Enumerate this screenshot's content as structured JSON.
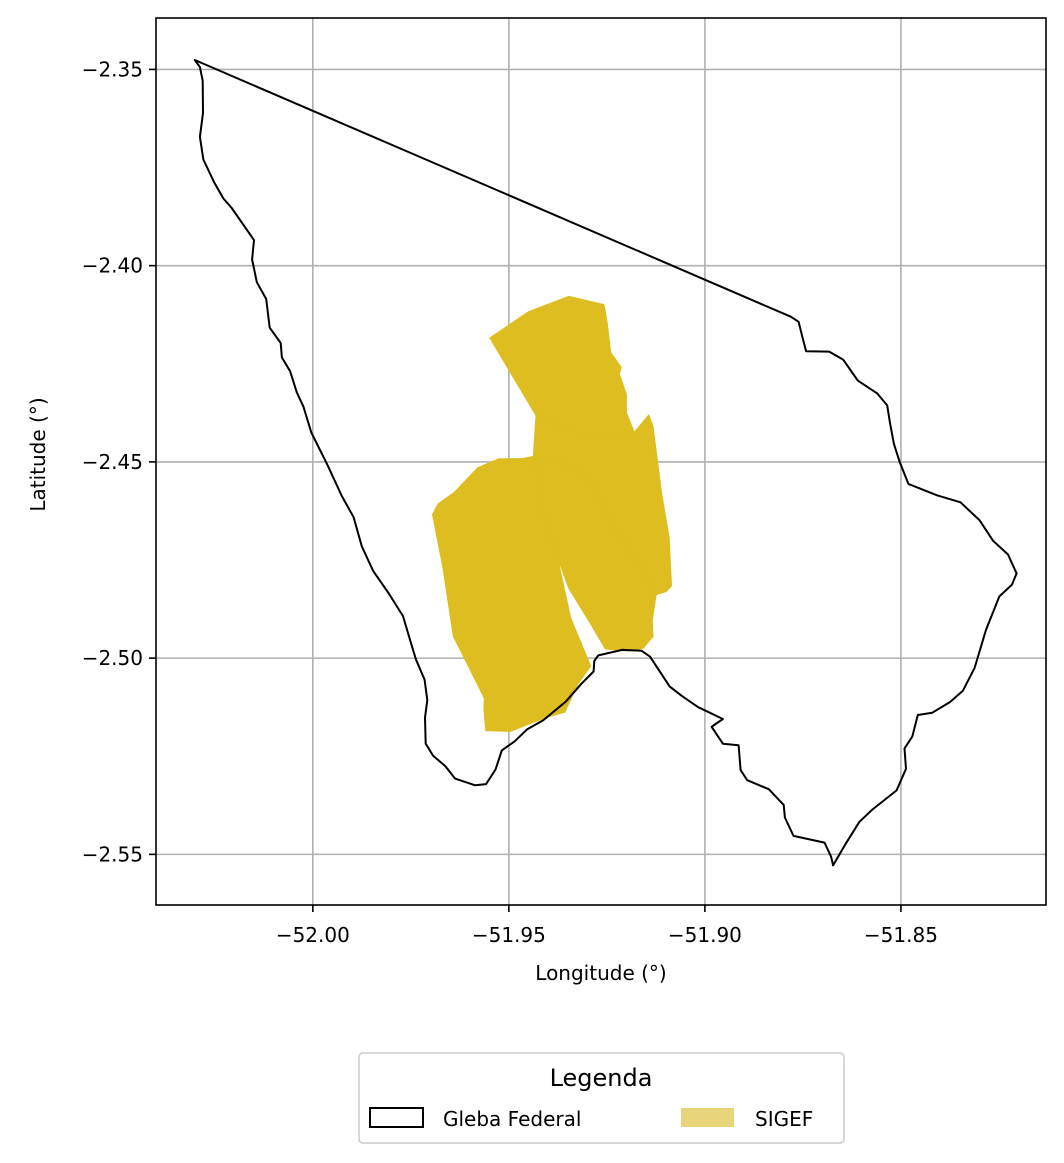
{
  "chart_data": {
    "type": "map",
    "xlabel": "Longitude (°)",
    "ylabel": "Latitude (°)",
    "xlim": [
      -52.04,
      -51.813
    ],
    "ylim": [
      -2.5629,
      -2.3369
    ],
    "x_ticks": [
      -52.0,
      -51.95,
      -51.9,
      -51.85
    ],
    "y_ticks": [
      -2.35,
      -2.4,
      -2.45,
      -2.5,
      -2.55
    ],
    "x_tick_labels": [
      "−52.00",
      "−51.95",
      "−51.90",
      "−51.85"
    ],
    "y_tick_labels": [
      "−2.35",
      "−2.40",
      "−2.45",
      "−2.50",
      "−2.55"
    ],
    "grid": true,
    "legend": {
      "title": "Legenda",
      "placement": "bottom-center, below plot",
      "entries": [
        {
          "label": "Gleba Federal",
          "style": "outline"
        },
        {
          "label": "SIGEF",
          "style": "fill"
        }
      ]
    },
    "colors": {
      "sigef_fill": "#DDBD1F",
      "sigef_legend": "#E8D47A",
      "gleba_edge": "#000000",
      "grid": "#b0b0b0"
    },
    "layers": [
      {
        "name": "Gleba Federal",
        "kind": "outline",
        "polygons": [
          [
            [
              -52.0301,
              -2.3476
            ],
            [
              -52.0288,
              -2.3494
            ],
            [
              -52.0281,
              -2.3529
            ],
            [
              -52.028,
              -2.3611
            ],
            [
              -52.0288,
              -2.3672
            ],
            [
              -52.0279,
              -2.373
            ],
            [
              -52.0251,
              -2.3789
            ],
            [
              -52.0228,
              -2.3829
            ],
            [
              -52.0207,
              -2.3853
            ],
            [
              -52.015,
              -2.3935
            ],
            [
              -52.0155,
              -2.3984
            ],
            [
              -52.0143,
              -2.4042
            ],
            [
              -52.0119,
              -2.4085
            ],
            [
              -52.011,
              -2.4158
            ],
            [
              -52.0082,
              -2.4197
            ],
            [
              -52.0079,
              -2.4234
            ],
            [
              -52.0058,
              -2.4269
            ],
            [
              -52.0041,
              -2.4323
            ],
            [
              -52.0024,
              -2.4359
            ],
            [
              -52.0004,
              -2.4425
            ],
            [
              -51.9962,
              -2.4509
            ],
            [
              -51.9926,
              -2.4587
            ],
            [
              -51.9896,
              -2.4641
            ],
            [
              -51.9875,
              -2.4715
            ],
            [
              -51.9846,
              -2.4778
            ],
            [
              -51.9807,
              -2.4834
            ],
            [
              -51.977,
              -2.4893
            ],
            [
              -51.9752,
              -2.4954
            ],
            [
              -51.9737,
              -2.5003
            ],
            [
              -51.9715,
              -2.5055
            ],
            [
              -51.9708,
              -2.5107
            ],
            [
              -51.9714,
              -2.5152
            ],
            [
              -51.9712,
              -2.5218
            ],
            [
              -51.9693,
              -2.5249
            ],
            [
              -51.9662,
              -2.5275
            ],
            [
              -51.9637,
              -2.5307
            ],
            [
              -51.9586,
              -2.5324
            ],
            [
              -51.9558,
              -2.5321
            ],
            [
              -51.9534,
              -2.5284
            ],
            [
              -51.9518,
              -2.5235
            ],
            [
              -51.9485,
              -2.5212
            ],
            [
              -51.9453,
              -2.5181
            ],
            [
              -51.9412,
              -2.5158
            ],
            [
              -51.9355,
              -2.5111
            ],
            [
              -51.9314,
              -2.5064
            ],
            [
              -51.9284,
              -2.5034
            ],
            [
              -51.9282,
              -2.5007
            ],
            [
              -51.9272,
              -2.4993
            ],
            [
              -51.9211,
              -2.4979
            ],
            [
              -51.9162,
              -2.4981
            ],
            [
              -51.914,
              -2.4996
            ],
            [
              -51.909,
              -2.5072
            ],
            [
              -51.9058,
              -2.5097
            ],
            [
              -51.9017,
              -2.5125
            ],
            [
              -51.8954,
              -2.5155
            ],
            [
              -51.8983,
              -2.5175
            ],
            [
              -51.8954,
              -2.5218
            ],
            [
              -51.8914,
              -2.5222
            ],
            [
              -51.8909,
              -2.5285
            ],
            [
              -51.8892,
              -2.5311
            ],
            [
              -51.8837,
              -2.5334
            ],
            [
              -51.8799,
              -2.5374
            ],
            [
              -51.8796,
              -2.5406
            ],
            [
              -51.8774,
              -2.5453
            ],
            [
              -51.8695,
              -2.547
            ],
            [
              -51.8678,
              -2.5506
            ],
            [
              -51.8673,
              -2.5528
            ],
            [
              -51.8644,
              -2.5478
            ],
            [
              -51.8606,
              -2.5417
            ],
            [
              -51.8573,
              -2.5386
            ],
            [
              -51.8511,
              -2.5337
            ],
            [
              -51.8487,
              -2.5282
            ],
            [
              -51.8491,
              -2.523
            ],
            [
              -51.8471,
              -2.52
            ],
            [
              -51.8457,
              -2.5145
            ],
            [
              -51.842,
              -2.5139
            ],
            [
              -51.8375,
              -2.5112
            ],
            [
              -51.8342,
              -2.5083
            ],
            [
              -51.8312,
              -2.5025
            ],
            [
              -51.8283,
              -2.4928
            ],
            [
              -51.8249,
              -2.4843
            ],
            [
              -51.8217,
              -2.4813
            ],
            [
              -51.8205,
              -2.4784
            ],
            [
              -51.8227,
              -2.4736
            ],
            [
              -51.8265,
              -2.4701
            ],
            [
              -51.8299,
              -2.4649
            ],
            [
              -51.8348,
              -2.4603
            ],
            [
              -51.8408,
              -2.4585
            ],
            [
              -51.8481,
              -2.4556
            ],
            [
              -51.8503,
              -2.4501
            ],
            [
              -51.8518,
              -2.4454
            ],
            [
              -51.8528,
              -2.4401
            ],
            [
              -51.8535,
              -2.4356
            ],
            [
              -51.856,
              -2.4326
            ],
            [
              -51.861,
              -2.4293
            ],
            [
              -51.8647,
              -2.424
            ],
            [
              -51.8683,
              -2.4219
            ],
            [
              -51.8742,
              -2.4218
            ],
            [
              -51.8752,
              -2.4179
            ],
            [
              -51.8761,
              -2.4143
            ],
            [
              -51.8781,
              -2.413
            ],
            [
              -52.0301,
              -2.3476
            ]
          ]
        ]
      },
      {
        "name": "SIGEF",
        "kind": "fill",
        "polygons": [
          [
            [
              -51.9549,
              -2.4184
            ],
            [
              -51.945,
              -2.4117
            ],
            [
              -51.9347,
              -2.4078
            ],
            [
              -51.9257,
              -2.4099
            ],
            [
              -51.9249,
              -2.4145
            ],
            [
              -51.924,
              -2.4221
            ],
            [
              -51.9213,
              -2.4259
            ],
            [
              -51.9218,
              -2.4276
            ],
            [
              -51.92,
              -2.4328
            ],
            [
              -51.92,
              -2.4375
            ],
            [
              -51.918,
              -2.4424
            ],
            [
              -51.9316,
              -2.4431
            ],
            [
              -51.9431,
              -2.4382
            ],
            [
              -51.9549,
              -2.4184
            ]
          ],
          [
            [
              -51.9431,
              -2.4382
            ],
            [
              -51.9316,
              -2.4431
            ],
            [
              -51.918,
              -2.4424
            ],
            [
              -51.9143,
              -2.438
            ],
            [
              -51.9132,
              -2.4409
            ],
            [
              -51.911,
              -2.4582
            ],
            [
              -51.9091,
              -2.4692
            ],
            [
              -51.9085,
              -2.4816
            ],
            [
              -51.9099,
              -2.4831
            ],
            [
              -51.9124,
              -2.4838
            ],
            [
              -51.916,
              -2.4775
            ],
            [
              -51.9226,
              -2.4672
            ],
            [
              -51.9294,
              -2.454
            ],
            [
              -51.9367,
              -2.4498
            ],
            [
              -51.9438,
              -2.4486
            ],
            [
              -51.9431,
              -2.4382
            ]
          ],
          [
            [
              -51.9438,
              -2.4486
            ],
            [
              -51.9367,
              -2.4498
            ],
            [
              -51.9294,
              -2.454
            ],
            [
              -51.9226,
              -2.4672
            ],
            [
              -51.916,
              -2.4775
            ],
            [
              -51.9124,
              -2.4838
            ],
            [
              -51.9134,
              -2.4903
            ],
            [
              -51.9132,
              -2.4945
            ],
            [
              -51.9157,
              -2.4975
            ],
            [
              -51.9197,
              -2.4982
            ],
            [
              -51.9254,
              -2.4977
            ],
            [
              -51.9287,
              -2.4921
            ],
            [
              -51.9347,
              -2.4823
            ],
            [
              -51.9375,
              -2.4747
            ],
            [
              -51.9409,
              -2.4643
            ],
            [
              -51.9438,
              -2.4486
            ]
          ],
          [
            [
              -51.9438,
              -2.4486
            ],
            [
              -51.9465,
              -2.4491
            ],
            [
              -51.9526,
              -2.4492
            ],
            [
              -51.958,
              -2.4515
            ],
            [
              -51.964,
              -2.4578
            ],
            [
              -51.9681,
              -2.4607
            ],
            [
              -51.9695,
              -2.4634
            ],
            [
              -51.9669,
              -2.4766
            ],
            [
              -51.9642,
              -2.4944
            ],
            [
              -51.9563,
              -2.5102
            ],
            [
              -51.9564,
              -2.5133
            ],
            [
              -51.9559,
              -2.5185
            ],
            [
              -51.9496,
              -2.5187
            ],
            [
              -51.941,
              -2.5153
            ],
            [
              -51.9357,
              -2.5138
            ],
            [
              -51.9323,
              -2.5065
            ],
            [
              -51.9291,
              -2.502
            ],
            [
              -51.9342,
              -2.4898
            ],
            [
              -51.9375,
              -2.4747
            ],
            [
              -51.9409,
              -2.4643
            ],
            [
              -51.9438,
              -2.4486
            ]
          ]
        ]
      }
    ]
  }
}
